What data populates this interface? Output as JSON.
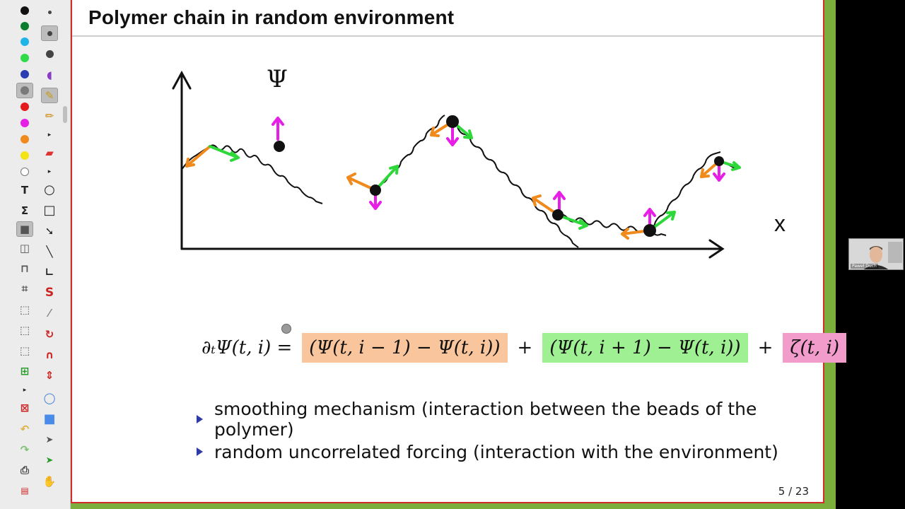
{
  "toolbar": {
    "colors": [
      "#111111",
      "#0a7d2c",
      "#1fb4e8",
      "#2edc4a",
      "#2b3bb3",
      "#7a7a7a",
      "#e41b1b",
      "#e61ee6",
      "#f08a1c",
      "#f3e214",
      "#ffffff"
    ],
    "selected_color": "#7a7a7a",
    "tools_left": [
      {
        "icon": "text-tool-icon",
        "glyph": "T"
      },
      {
        "icon": "formula-tool-icon",
        "glyph": "Σ"
      },
      {
        "icon": "fill-rect-icon",
        "glyph": "■"
      },
      {
        "icon": "split-view-icon",
        "glyph": "◫"
      },
      {
        "icon": "presentation-icon",
        "glyph": "⌂"
      },
      {
        "icon": "crop-icon",
        "glyph": "⌗"
      },
      {
        "icon": "select-region-icon",
        "glyph": "⬚"
      },
      {
        "icon": "select-dotted-icon",
        "glyph": "⬚"
      },
      {
        "icon": "zoom-region-icon",
        "glyph": "⬚"
      },
      {
        "icon": "add-slide-icon",
        "glyph": "⊞"
      },
      {
        "icon": "small-arrow-icon",
        "glyph": "▸"
      },
      {
        "icon": "delete-slide-icon",
        "glyph": "⊠"
      },
      {
        "icon": "undo-icon",
        "glyph": "↶"
      },
      {
        "icon": "redo-icon",
        "glyph": "↷"
      },
      {
        "icon": "print-icon",
        "glyph": "⎙"
      },
      {
        "icon": "pdf-export-icon",
        "glyph": "▤"
      }
    ],
    "tools_right": [
      {
        "icon": "small-dot-icon",
        "glyph": "•"
      },
      {
        "icon": "medium-dot-icon",
        "glyph": "●"
      },
      {
        "icon": "large-dot-icon",
        "glyph": "●"
      },
      {
        "icon": "eraser-blob-icon",
        "glyph": "◖"
      },
      {
        "icon": "highlighter-icon",
        "glyph": "✎"
      },
      {
        "icon": "pencil-icon",
        "glyph": "✏"
      },
      {
        "icon": "small-arrow-icon",
        "glyph": "▸"
      },
      {
        "icon": "eraser-icon",
        "glyph": "▰"
      },
      {
        "icon": "small-arrow-icon",
        "glyph": "▸"
      },
      {
        "icon": "circle-tool-icon",
        "glyph": "○"
      },
      {
        "icon": "rectangle-tool-icon",
        "glyph": "□"
      },
      {
        "icon": "arrow-tool-icon",
        "glyph": "➘"
      },
      {
        "icon": "line-tool-icon",
        "glyph": "╲"
      },
      {
        "icon": "angle-line-icon",
        "glyph": "∟"
      },
      {
        "icon": "curve-tool-icon",
        "glyph": "S"
      },
      {
        "icon": "laser-pointer-icon",
        "glyph": "⁄"
      },
      {
        "icon": "refresh-icon",
        "glyph": "↻"
      },
      {
        "icon": "magnet-icon",
        "glyph": "∩"
      },
      {
        "icon": "vertical-move-icon",
        "glyph": "⇕"
      },
      {
        "icon": "bubble-icon",
        "glyph": "◯"
      },
      {
        "icon": "blue-square-icon",
        "glyph": "■"
      },
      {
        "icon": "pointer-icon",
        "glyph": "➤"
      },
      {
        "icon": "pointer-plus-icon",
        "glyph": "➤"
      },
      {
        "icon": "hand-icon",
        "glyph": "✋"
      }
    ]
  },
  "slide": {
    "title": "Polymer chain in random environment",
    "axis_y_label": "Ψ",
    "axis_x_label": "x",
    "equation": {
      "lhs": "∂ₜΨ(t, i) =",
      "term_orange": "(Ψ(t, i − 1) − Ψ(t, i))",
      "plus1": "+",
      "term_green": "(Ψ(t, i + 1) − Ψ(t, i))",
      "plus2": "+",
      "term_pink": "ζ(t, i)",
      "colors": {
        "orange": "#f9c59c",
        "green": "#9ef092",
        "pink": "#f29ccc"
      }
    },
    "bullets": [
      "smoothing mechanism (interaction between the beads of the polymer)",
      "random uncorrelated forcing (interaction with the environment)"
    ],
    "page_counter": "5 / 23"
  },
  "webcam": {
    "name": "Paweł Duch"
  },
  "drawing_colors": {
    "bead": "#111111",
    "orange_arrow": "#f08a1c",
    "green_arrow": "#2fd83a",
    "magenta_arrow": "#e61ee6",
    "spring": "#111111"
  }
}
